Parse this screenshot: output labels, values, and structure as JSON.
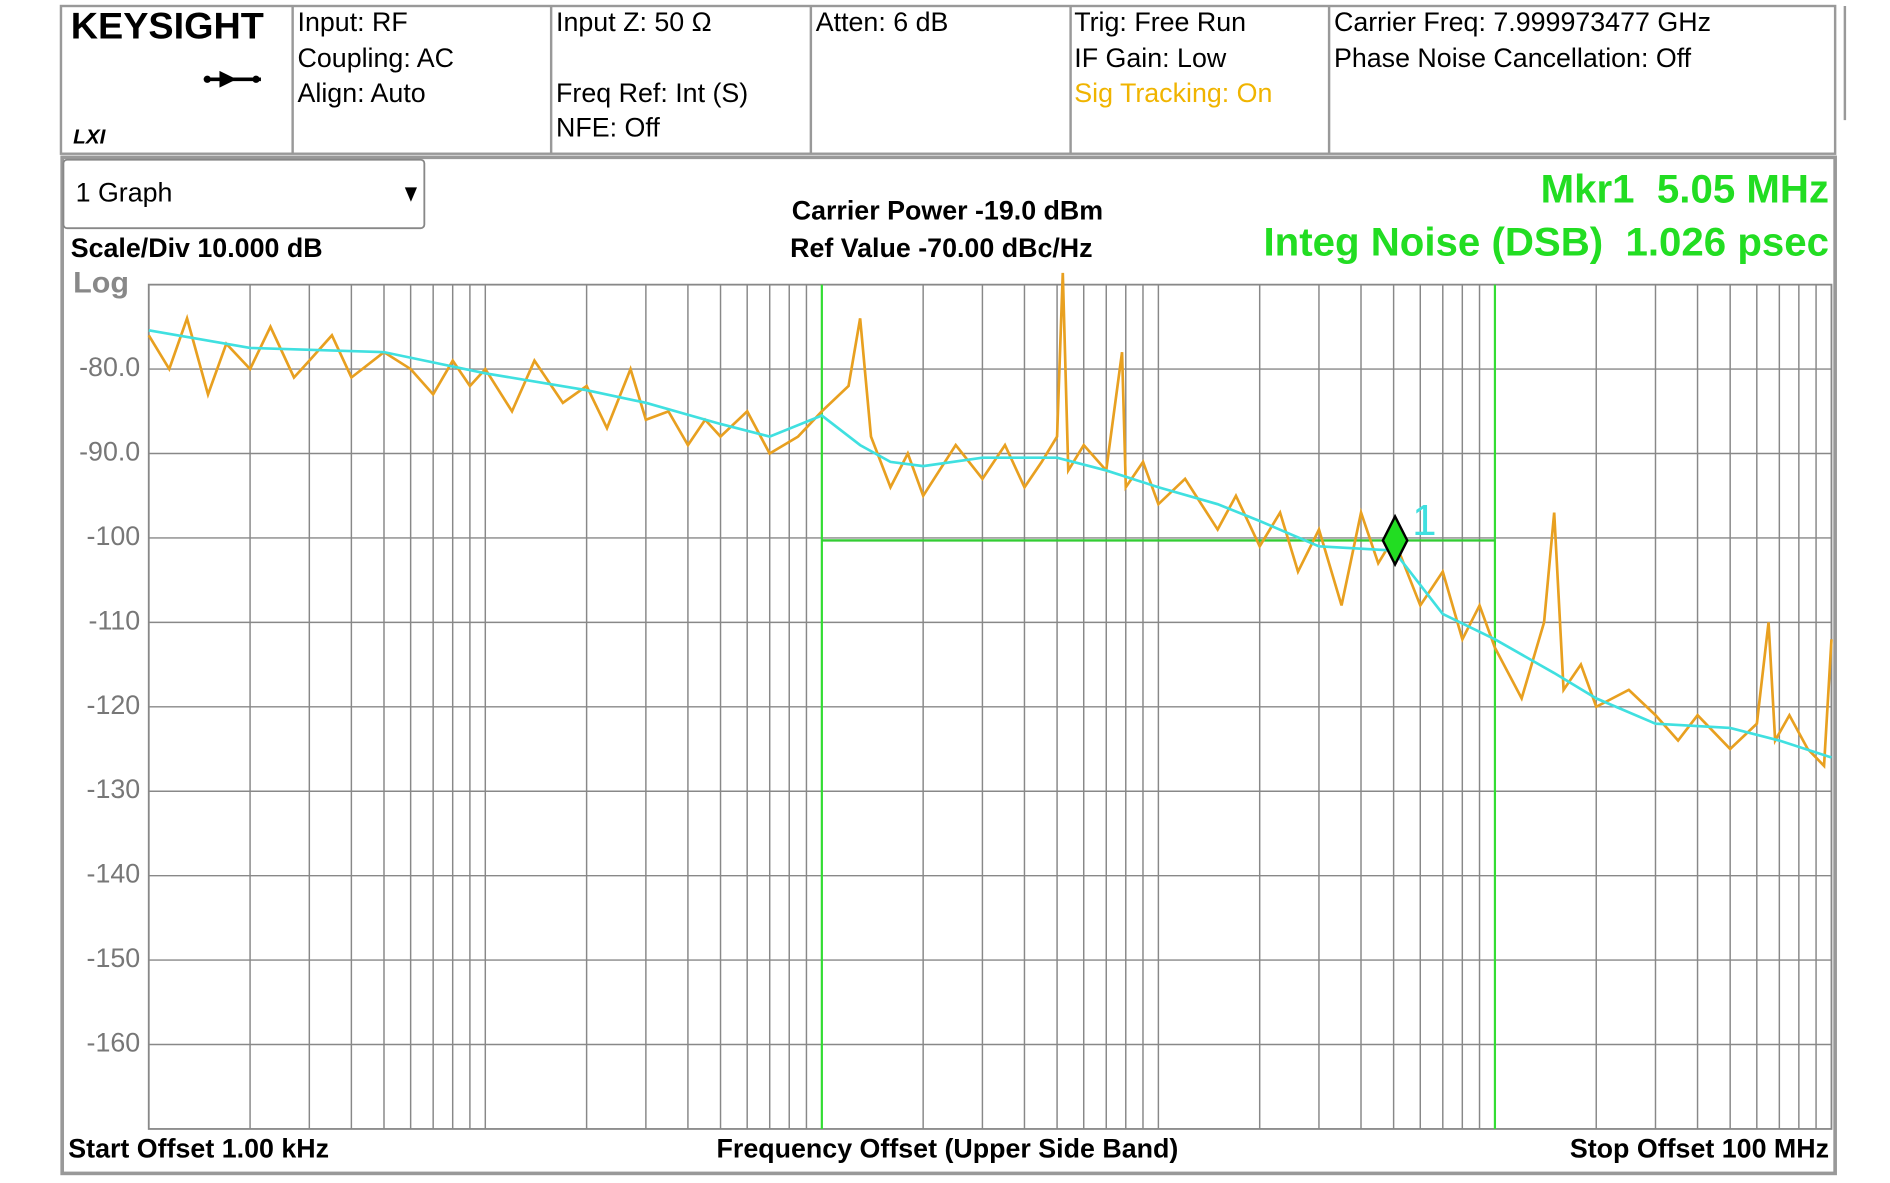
{
  "header": {
    "logo": "KEYSIGHT",
    "lxi": "LXI",
    "input": "Input: RF",
    "coupling": "Coupling: AC",
    "align": "Align: Auto",
    "input_z": "Input Z: 50 Ω",
    "freq_ref": "Freq Ref: Int (S)",
    "nfe": "NFE: Off",
    "atten": "Atten: 6 dB",
    "trig": "Trig: Free Run",
    "if_gain": "IF Gain: Low",
    "sig_tracking": "Sig Tracking: On",
    "carrier_freq": "Carrier Freq: 7.999973477 GHz",
    "pnc": "Phase Noise Cancellation: Off"
  },
  "graph_selector": "1 Graph",
  "chart_data": {
    "type": "line",
    "carrier_power": "Carrier Power -19.0 dBm",
    "ref_value": "Ref Value -70.00 dBc/Hz",
    "scale_div": "Scale/Div 10.000 dB",
    "y_scale": "Log",
    "marker_readout": "Mkr1  5.05 MHz",
    "integ_noise": "Integ Noise (DSB)  1.026 psec",
    "x_start": "Start Offset 1.00 kHz",
    "xlabel": "Frequency Offset (Upper Side Band)",
    "x_stop": "Stop Offset 100 MHz",
    "xlim": [
      1000,
      100000000
    ],
    "x_log": true,
    "ylim": [
      -170,
      -70
    ],
    "yticks": [
      {
        "value": -80,
        "label": "-80.0"
      },
      {
        "value": -90,
        "label": "-90.0"
      },
      -100,
      -110,
      -120,
      -130,
      -140,
      -150,
      -160
    ],
    "grid": true,
    "integration_range": [
      100000,
      10000000
    ],
    "marker": {
      "label": "1",
      "x": 5050000,
      "y": -100.3
    },
    "series": [
      {
        "color": "#e8a020",
        "x": [
          1000,
          1150,
          1300,
          1500,
          1700,
          2000,
          2300,
          2700,
          3000,
          3500,
          4000,
          5000,
          6000,
          7000,
          8000,
          9000,
          10000,
          12000,
          14000,
          17000,
          20000,
          23000,
          27000,
          30000,
          35000,
          40000,
          45000,
          50000,
          60000,
          70000,
          85000,
          100000,
          120000,
          130000,
          140000,
          160000,
          180000,
          200000,
          250000,
          300000,
          350000,
          400000,
          450000,
          500000,
          520000,
          540000,
          600000,
          700000,
          780000,
          800000,
          900000,
          1000000,
          1200000,
          1500000,
          1700000,
          2000000,
          2300000,
          2600000,
          3000000,
          3500000,
          4000000,
          4500000,
          5000000,
          6000000,
          7000000,
          8000000,
          9000000,
          10000000,
          12000000,
          14000000,
          15000000,
          16000000,
          18000000,
          20000000,
          25000000,
          30000000,
          35000000,
          40000000,
          50000000,
          60000000,
          65000000,
          68000000,
          75000000,
          85000000,
          95000000,
          100000000
        ],
        "values": [
          -76,
          -80,
          -74,
          -83,
          -77,
          -80,
          -75,
          -81,
          -79,
          -76,
          -81,
          -78,
          -80,
          -83,
          -79,
          -82,
          -80,
          -85,
          -79,
          -84,
          -82,
          -87,
          -80,
          -86,
          -85,
          -89,
          -86,
          -88,
          -85,
          -90,
          -88,
          -85,
          -82,
          -74,
          -88,
          -94,
          -90,
          -95,
          -89,
          -93,
          -89,
          -94,
          -91,
          -88,
          -68.6,
          -92,
          -89,
          -92,
          -78,
          -94,
          -91,
          -96,
          -93,
          -99,
          -95,
          -101,
          -97,
          -104,
          -99,
          -108,
          -97,
          -103,
          -100,
          -108,
          -104,
          -112,
          -108,
          -113,
          -119,
          -110,
          -97,
          -118,
          -115,
          -120,
          -118,
          -121,
          -124,
          -121,
          -125,
          -122,
          -110,
          -124,
          -121,
          -125,
          -127,
          -112
        ]
      },
      {
        "color": "#40e0e0",
        "x": [
          1000,
          2000,
          5000,
          10000,
          20000,
          30000,
          50000,
          70000,
          100000,
          130000,
          160000,
          200000,
          300000,
          500000,
          700000,
          1000000,
          1500000,
          2000000,
          3000000,
          5000000,
          7000000,
          10000000,
          15000000,
          20000000,
          30000000,
          50000000,
          70000000,
          100000000
        ],
        "values": [
          -75.4,
          -77.5,
          -78,
          -80.5,
          -82.5,
          -84,
          -86.5,
          -88,
          -85.5,
          -89,
          -91,
          -91.5,
          -90.5,
          -90.5,
          -92,
          -94,
          -96,
          -98,
          -101,
          -101.5,
          -109,
          -112,
          -116,
          -119,
          -122,
          -122.5,
          -124,
          -126
        ]
      }
    ]
  }
}
